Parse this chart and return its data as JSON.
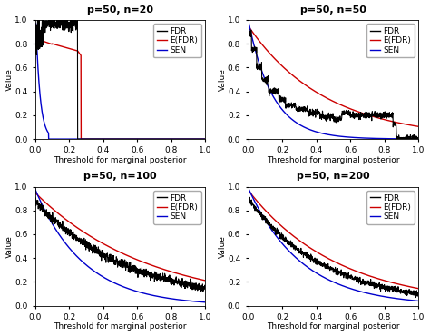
{
  "panels": [
    {
      "title": "p=50, n=20",
      "n": 20
    },
    {
      "title": "p=50, n=50",
      "n": 50
    },
    {
      "title": "p=50, n=100",
      "n": 100
    },
    {
      "title": "p=50, n=200",
      "n": 200
    }
  ],
  "colors": {
    "FDR": "#000000",
    "EFDR": "#cc0000",
    "SEN": "#0000cc"
  },
  "xlabel": "Threshold for marginal posterior",
  "ylabel": "Value",
  "xlim": [
    0.0,
    1.0
  ],
  "ylim": [
    0.0,
    1.0
  ],
  "xticks": [
    0.0,
    0.2,
    0.4,
    0.6,
    0.8,
    1.0
  ],
  "yticks": [
    0.0,
    0.2,
    0.4,
    0.6,
    0.8,
    1.0
  ],
  "xtick_labels": [
    "0.0",
    "0.2",
    "0.4",
    "0.6",
    "0.8",
    "1.0"
  ],
  "ytick_labels": [
    "0.0",
    "0.2",
    "0.4",
    "0.6",
    "0.8",
    "1.0"
  ],
  "legend_labels": [
    "FDR",
    "E(FDR)",
    "SEN"
  ],
  "title_fontsize": 8,
  "axis_fontsize": 6.5,
  "tick_fontsize": 6.5,
  "legend_fontsize": 6.5,
  "linewidth_fdr": 0.8,
  "linewidth_efdr": 1.0,
  "linewidth_sen": 1.0
}
